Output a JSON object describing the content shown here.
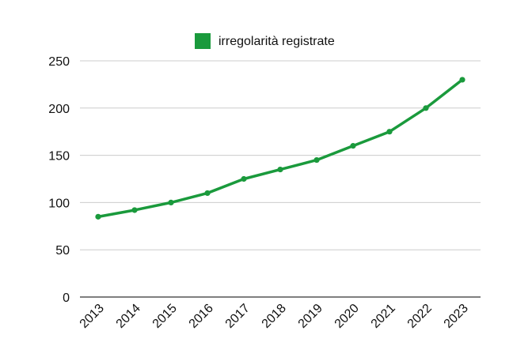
{
  "chart_data": {
    "type": "line",
    "title": "",
    "xlabel": "",
    "ylabel": "",
    "categories": [
      "2013",
      "2014",
      "2015",
      "2016",
      "2017",
      "2018",
      "2019",
      "2020",
      "2021",
      "2022",
      "2023"
    ],
    "series": [
      {
        "name": "irregolarità registrate",
        "values": [
          85,
          92,
          100,
          110,
          125,
          135,
          145,
          160,
          175,
          200,
          230
        ]
      }
    ],
    "ylim": [
      0,
      250
    ],
    "yticks": [
      0,
      50,
      100,
      150,
      200,
      250
    ],
    "grid": true,
    "legend_position": "top",
    "colors": {
      "series": "#1a9a3c",
      "grid": "#cccccc",
      "axis": "#333333"
    }
  }
}
